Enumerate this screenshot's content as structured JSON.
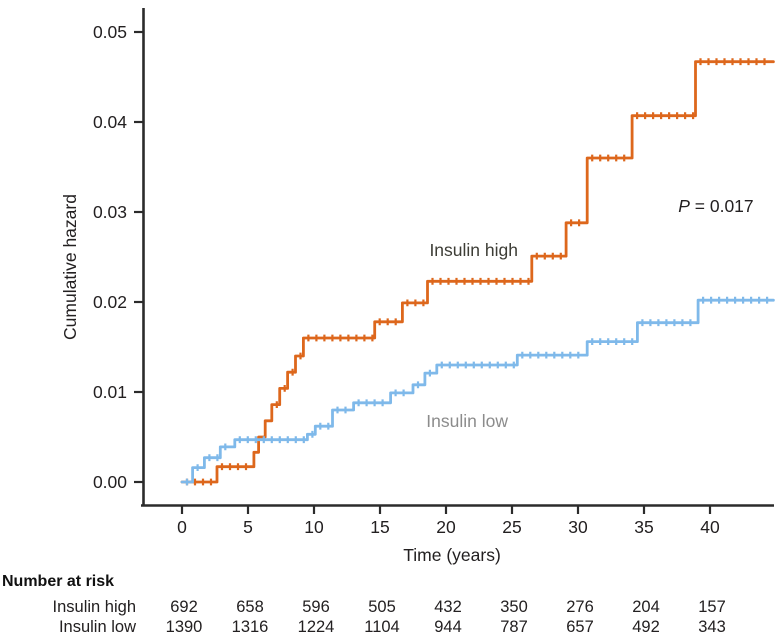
{
  "chart_data": {
    "type": "line",
    "subtype": "step-cumulative-hazard",
    "xlabel": "Time (years)",
    "ylabel": "Cumulative hazard",
    "xlim": [
      0,
      44.8
    ],
    "ylim": [
      0,
      0.05
    ],
    "xticks": [
      0,
      5,
      10,
      15,
      20,
      25,
      30,
      35,
      40
    ],
    "xtick_labels": [
      "0",
      "5",
      "10",
      "15",
      "20",
      "25",
      "30",
      "35",
      "40"
    ],
    "yticks": [
      0.0,
      0.01,
      0.02,
      0.03,
      0.04,
      0.05
    ],
    "ytick_labels": [
      "0.00",
      "0.01",
      "0.02",
      "0.03",
      "0.04",
      "0.05"
    ],
    "grid": false,
    "legend": "inline-labels",
    "end_time": 44.8,
    "p_annotation": {
      "italic": "P",
      "text": " = 0.017",
      "x": 40.45,
      "y": 0.0307
    },
    "series": [
      {
        "name": "Insulin high",
        "color": "#DD671C",
        "label_color": "#3D3D36",
        "label_pos": {
          "x": 22.1,
          "y": 0.0258
        },
        "steps": [
          [
            0,
            0.0
          ],
          [
            2.65,
            0.0017
          ],
          [
            5.45,
            0.0033
          ],
          [
            5.8,
            0.005
          ],
          [
            6.3,
            0.0068
          ],
          [
            6.8,
            0.0086
          ],
          [
            7.4,
            0.0104
          ],
          [
            8.0,
            0.0122
          ],
          [
            8.6,
            0.014
          ],
          [
            9.2,
            0.016
          ],
          [
            14.6,
            0.0178
          ],
          [
            16.7,
            0.0199
          ],
          [
            18.6,
            0.0223
          ],
          [
            26.5,
            0.0251
          ],
          [
            29.1,
            0.0288
          ],
          [
            30.7,
            0.036
          ],
          [
            34.1,
            0.0407
          ],
          [
            38.9,
            0.0467
          ]
        ]
      },
      {
        "name": "Insulin low",
        "color": "#7FB9EA",
        "label_color": "#8C8C8C",
        "label_pos": {
          "x": 21.6,
          "y": 0.0068
        },
        "steps": [
          [
            0,
            0.0
          ],
          [
            0.8,
            0.0016
          ],
          [
            1.7,
            0.0027
          ],
          [
            2.9,
            0.0039
          ],
          [
            4.0,
            0.0047
          ],
          [
            9.5,
            0.0053
          ],
          [
            10.1,
            0.0062
          ],
          [
            11.4,
            0.008
          ],
          [
            13.0,
            0.0088
          ],
          [
            15.8,
            0.0099
          ],
          [
            17.5,
            0.0108
          ],
          [
            18.4,
            0.0121
          ],
          [
            19.3,
            0.013
          ],
          [
            25.4,
            0.0141
          ],
          [
            30.7,
            0.0156
          ],
          [
            34.5,
            0.0177
          ],
          [
            39.1,
            0.0202
          ]
        ]
      }
    ]
  },
  "risk_table": {
    "title": "Number at risk",
    "time_points": [
      0,
      5,
      10,
      15,
      20,
      25,
      30,
      35,
      40
    ],
    "rows": [
      {
        "label": "Insulin high",
        "values": [
          692,
          658,
          596,
          505,
          432,
          350,
          276,
          204,
          157
        ]
      },
      {
        "label": "Insulin low",
        "values": [
          1390,
          1316,
          1224,
          1104,
          944,
          787,
          657,
          492,
          343
        ]
      }
    ]
  }
}
